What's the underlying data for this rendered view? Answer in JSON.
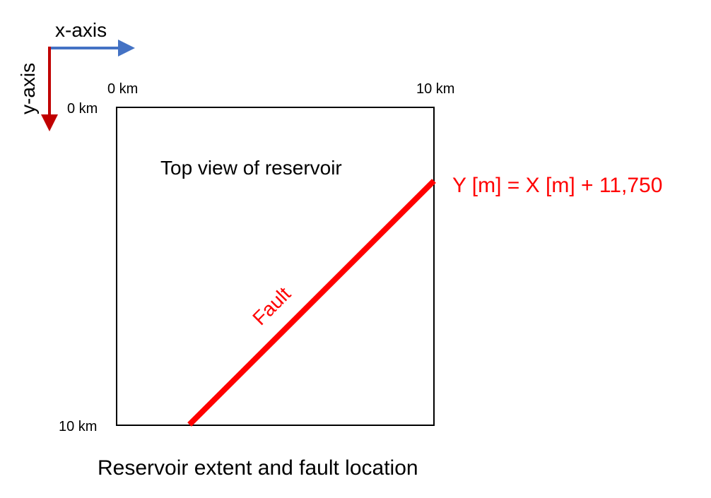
{
  "axes": {
    "x_label": "x-axis",
    "y_label": "y-axis",
    "x_color": "#4472C4",
    "y_color": "#C00000"
  },
  "box": {
    "x_start_label": "0 km",
    "x_end_label": "10 km",
    "y_start_label": "0 km",
    "y_end_label": "10 km",
    "title": "Top view of reservoir"
  },
  "fault": {
    "label": "Fault",
    "equation": "Y [m] = X [m] + 11,750",
    "color": "#FF0000"
  },
  "caption": "Reservoir extent and fault location"
}
